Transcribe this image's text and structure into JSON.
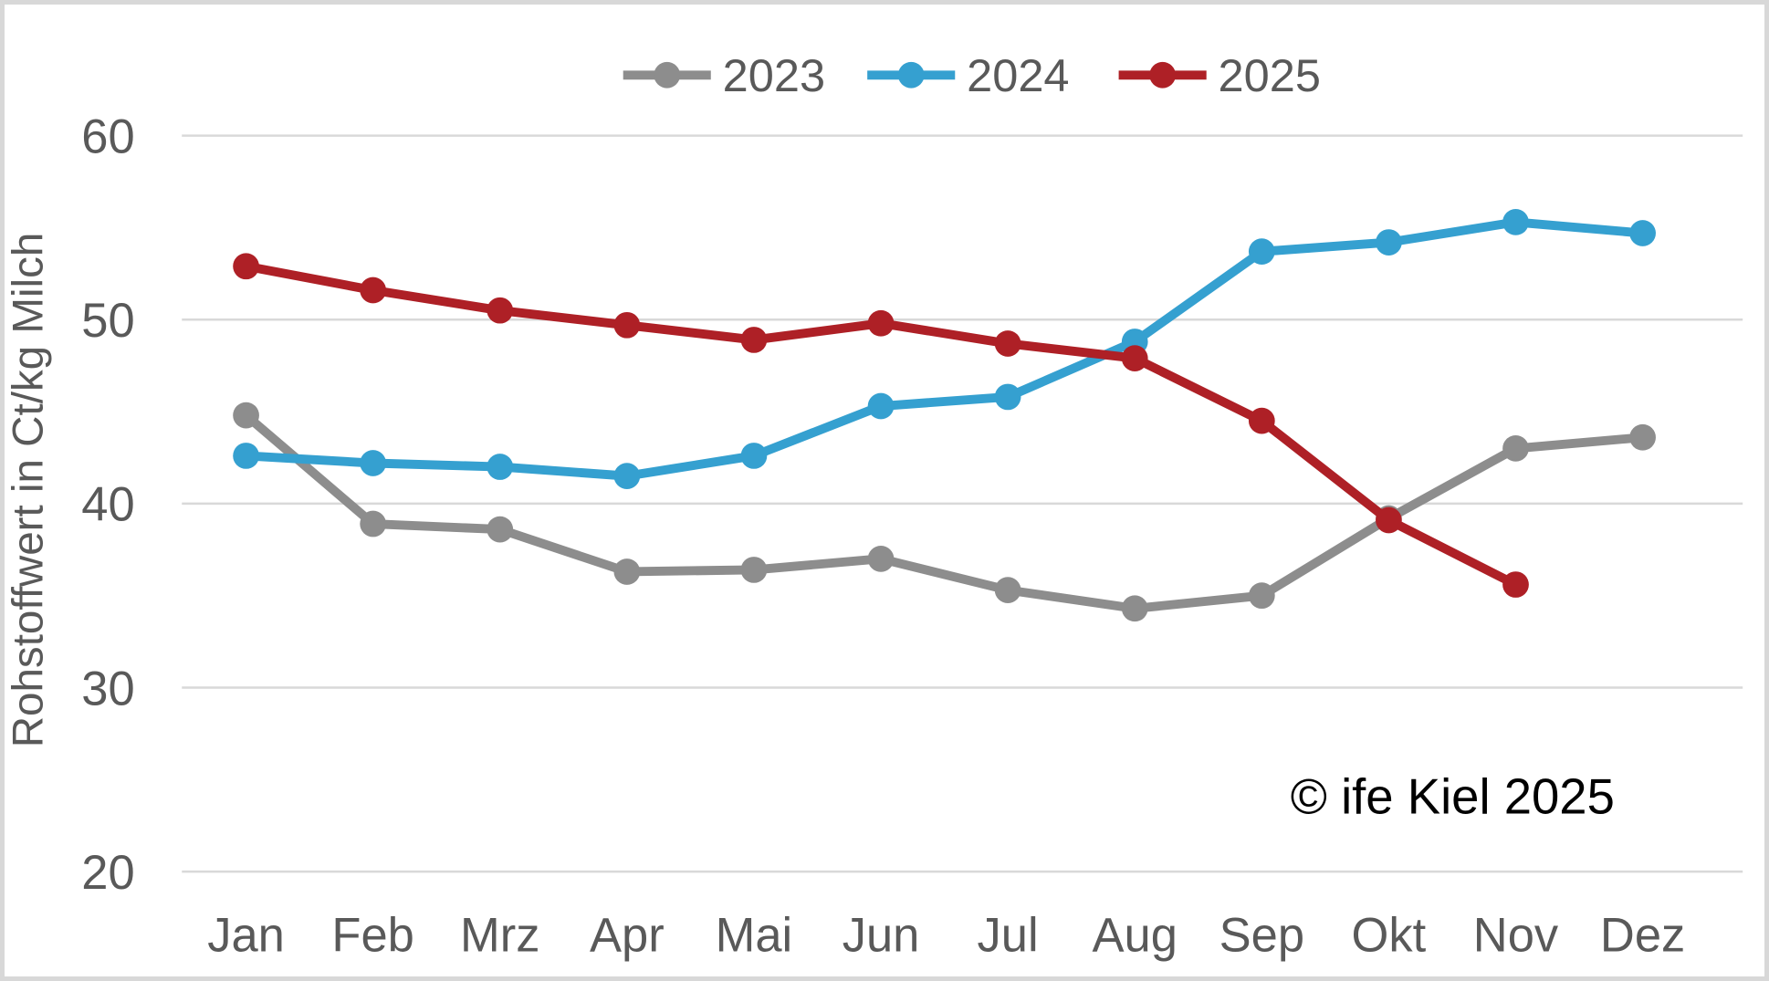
{
  "chart_data": {
    "type": "line",
    "title": "",
    "ylabel": "Rohstoffwert in Ct/kg Milch",
    "xlabel": "",
    "categories": [
      "Jan",
      "Feb",
      "Mrz",
      "Apr",
      "Mai",
      "Jun",
      "Jul",
      "Aug",
      "Sep",
      "Okt",
      "Nov",
      "Dez"
    ],
    "series": [
      {
        "name": "2023",
        "color": "#8d8d8d",
        "values": [
          44.8,
          38.9,
          38.6,
          36.3,
          36.4,
          37.0,
          35.3,
          34.3,
          35.0,
          39.2,
          43.0,
          43.6
        ]
      },
      {
        "name": "2024",
        "color": "#35a0d0",
        "values": [
          42.6,
          42.2,
          42.0,
          41.5,
          42.6,
          45.3,
          45.8,
          48.8,
          53.7,
          54.2,
          55.3,
          54.7
        ]
      },
      {
        "name": "2025",
        "color": "#ae2026",
        "values": [
          52.9,
          51.6,
          50.5,
          49.7,
          48.9,
          49.8,
          48.7,
          47.9,
          44.5,
          39.1,
          35.6,
          null
        ]
      }
    ],
    "ylim": [
      20,
      60
    ],
    "yticks": [
      60,
      50,
      40,
      30,
      20
    ],
    "grid": true,
    "legend_position": "top",
    "annotation": "© ife Kiel 2025"
  },
  "colors": {
    "axis_text": "#595959",
    "gridline": "#d9d9d9",
    "frame_border": "#d8d8d8",
    "annotation_text": "#000000"
  }
}
